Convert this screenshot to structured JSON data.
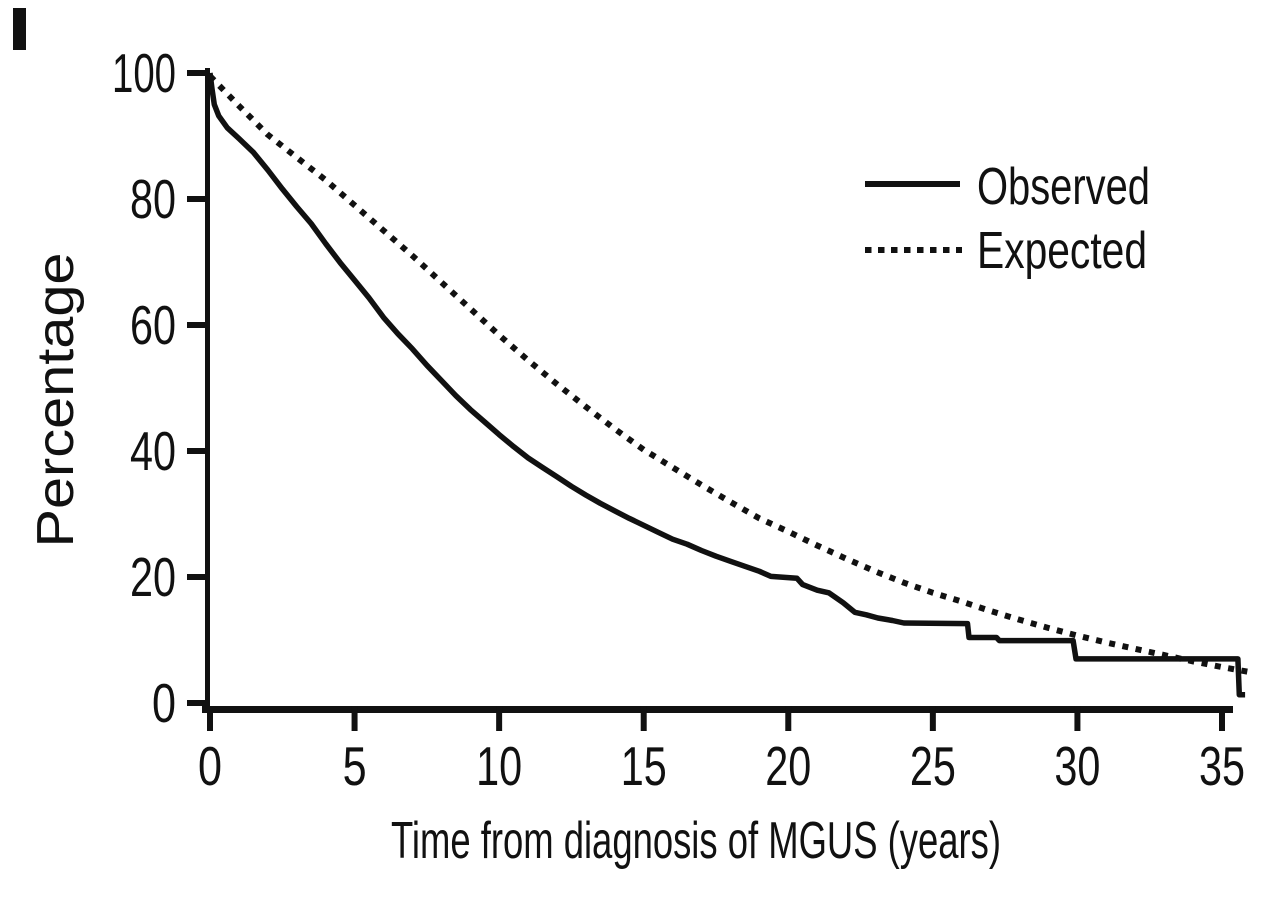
{
  "figure": {
    "background": "#ffffff",
    "ink_color": "#111111"
  },
  "chart_data": {
    "type": "line",
    "title": "",
    "xlabel": "Time from diagnosis of MGUS (years)",
    "ylabel": "Percentage",
    "xlim": [
      0,
      36.5
    ],
    "ylim": [
      0,
      100
    ],
    "x_ticks": [
      0,
      5,
      10,
      15,
      20,
      25,
      30,
      35
    ],
    "y_ticks": [
      0,
      20,
      40,
      60,
      80,
      100
    ],
    "grid": false,
    "legend_position": "upper right",
    "series": [
      {
        "name": "Observed",
        "style": "solid",
        "points": [
          [
            0,
            100
          ],
          [
            0.07,
            97.5
          ],
          [
            0.15,
            95
          ],
          [
            0.3,
            93.2
          ],
          [
            0.6,
            91.3
          ],
          [
            1,
            89.6
          ],
          [
            1.5,
            87.4
          ],
          [
            2,
            84.6
          ],
          [
            2.5,
            81.6
          ],
          [
            3,
            78.8
          ],
          [
            3.5,
            76.1
          ],
          [
            4,
            72.9
          ],
          [
            4.5,
            69.9
          ],
          [
            5,
            67.1
          ],
          [
            5.5,
            64.3
          ],
          [
            6,
            61.2
          ],
          [
            6.5,
            58.6
          ],
          [
            7,
            56.2
          ],
          [
            7.5,
            53.6
          ],
          [
            8,
            51.2
          ],
          [
            8.5,
            48.8
          ],
          [
            9,
            46.6
          ],
          [
            9.5,
            44.6
          ],
          [
            10,
            42.6
          ],
          [
            10.5,
            40.7
          ],
          [
            11,
            38.9
          ],
          [
            11.5,
            37.4
          ],
          [
            12,
            35.9
          ],
          [
            12.5,
            34.4
          ],
          [
            13,
            33
          ],
          [
            13.5,
            31.7
          ],
          [
            14,
            30.5
          ],
          [
            14.5,
            29.3
          ],
          [
            15,
            28.2
          ],
          [
            15.5,
            27.1
          ],
          [
            16,
            26
          ],
          [
            16.5,
            25.2
          ],
          [
            17,
            24.2
          ],
          [
            17.5,
            23.3
          ],
          [
            18,
            22.5
          ],
          [
            18.5,
            21.7
          ],
          [
            19,
            20.9
          ],
          [
            19.4,
            20.1
          ],
          [
            20.3,
            19.8
          ],
          [
            20.5,
            18.8
          ],
          [
            21,
            17.9
          ],
          [
            21.4,
            17.5
          ],
          [
            21.9,
            15.9
          ],
          [
            22.3,
            14.4
          ],
          [
            22.7,
            14
          ],
          [
            23.1,
            13.5
          ],
          [
            23.6,
            13.1
          ],
          [
            24,
            12.7
          ],
          [
            26.2,
            12.6
          ],
          [
            26.25,
            10.4
          ],
          [
            27.2,
            10.4
          ],
          [
            27.3,
            9.9
          ],
          [
            29.85,
            9.9
          ],
          [
            29.95,
            7
          ],
          [
            35.55,
            7
          ],
          [
            35.6,
            1.3
          ],
          [
            35.8,
            1.3
          ]
        ]
      },
      {
        "name": "Expected",
        "style": "dotted",
        "points": [
          [
            0,
            99.5
          ],
          [
            1,
            94.8
          ],
          [
            2,
            90.2
          ],
          [
            3,
            86.6
          ],
          [
            4,
            83
          ],
          [
            5,
            79
          ],
          [
            6,
            75
          ],
          [
            7,
            71
          ],
          [
            8,
            66.8
          ],
          [
            9,
            62.6
          ],
          [
            10,
            58.4
          ],
          [
            11,
            54.4
          ],
          [
            12,
            50.6
          ],
          [
            13,
            47
          ],
          [
            14,
            43.5
          ],
          [
            15,
            40.2
          ],
          [
            16,
            37.4
          ],
          [
            17,
            34.6
          ],
          [
            18,
            31.9
          ],
          [
            19,
            29.3
          ],
          [
            20,
            27.2
          ],
          [
            21,
            25
          ],
          [
            22,
            22.9
          ],
          [
            23,
            20.9
          ],
          [
            24,
            19.1
          ],
          [
            25,
            17.5
          ],
          [
            26,
            16.1
          ],
          [
            27,
            14.6
          ],
          [
            28,
            13.2
          ],
          [
            29,
            11.9
          ],
          [
            30,
            10.7
          ],
          [
            31,
            9.6
          ],
          [
            32,
            8.6
          ],
          [
            33,
            7.6
          ],
          [
            34,
            6.6
          ],
          [
            35,
            5.7
          ],
          [
            36.1,
            4.8
          ]
        ]
      }
    ]
  },
  "legend": {
    "items": [
      {
        "label": "Observed",
        "line_style": "solid"
      },
      {
        "label": "Expected",
        "line_style": "dotted"
      }
    ]
  }
}
